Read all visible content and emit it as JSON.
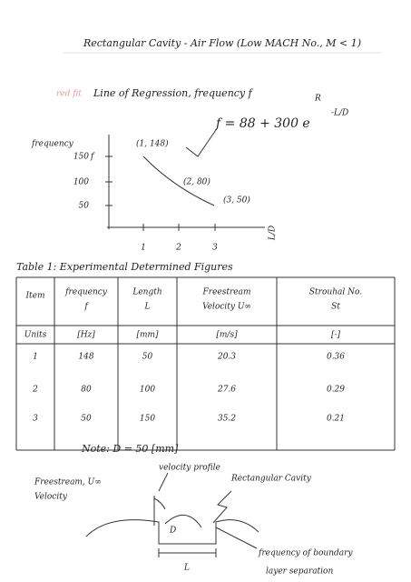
{
  "header": {
    "title": "Rectangular Cavity - Air Flow (Low MACH No., M < 1)"
  },
  "regression": {
    "note": "red fit",
    "heading": "Line of Regression, frequency f",
    "subscript": "R",
    "equation": "f = 88 + 300 e",
    "exponent": "-L/D"
  },
  "sketch": {
    "y_label": [
      "frequency",
      "f"
    ],
    "y_ticks": [
      "150",
      "100",
      "50"
    ],
    "x_ticks": [
      "1",
      "2",
      "3"
    ],
    "x_label": "L/D",
    "points": [
      "(1, 148)",
      "(2, 80)",
      "(3, 50)"
    ]
  },
  "table": {
    "caption": "Table 1: Experimental Determined Figures",
    "header": [
      [
        "Item"
      ],
      [
        "frequency",
        "f"
      ],
      [
        "Length",
        "L"
      ],
      [
        "Freestream",
        "Velocity U∞"
      ],
      [
        "Strouhal No.",
        "St"
      ]
    ],
    "units": [
      "Units",
      "[Hz]",
      "[mm]",
      "[m/s]",
      "[-]"
    ],
    "rows": [
      [
        "1",
        "148",
        "50",
        "20.3",
        "0.36"
      ],
      [
        "2",
        "80",
        "100",
        "27.6",
        "0.29"
      ],
      [
        "3",
        "50",
        "150",
        "35.2",
        "0.21"
      ]
    ]
  },
  "note": "Note: D = 50 [mm]",
  "diagram": {
    "velocity_profile": "velocity profile",
    "cavity": "Rectangular Cavity",
    "freestream": [
      "Freestream, U∞",
      "Velocity"
    ],
    "depth": "D",
    "length": "L",
    "separation": [
      "frequency of boundary",
      "layer separation"
    ]
  }
}
